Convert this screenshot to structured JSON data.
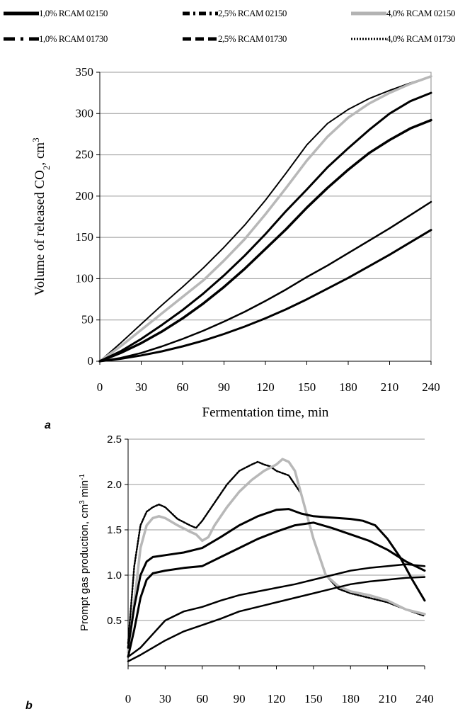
{
  "legend": [
    {
      "label": "1,0% RCAM 02150",
      "color": "#000000",
      "dash": "solid",
      "width": 5
    },
    {
      "label": "2,5% RCAM 02150",
      "color": "#000000",
      "dash": "dashdot",
      "width": 5
    },
    {
      "label": "4,0% RCAM 02150",
      "color": "#b3b3b3",
      "dash": "solid",
      "width": 5
    },
    {
      "label": "1,0% RCAM 01730",
      "color": "#000000",
      "dash": "longdash",
      "width": 5
    },
    {
      "label": "2,5% RCAM 01730",
      "color": "#000000",
      "dash": "dash",
      "width": 5
    },
    {
      "label": "4,0% RCAM 01730",
      "color": "#000000",
      "dash": "dot",
      "width": 3
    }
  ],
  "panels": {
    "a": "a",
    "b": "b"
  },
  "chart_data": [
    {
      "type": "line",
      "panel": "a",
      "xlabel": "Fermentation time, min",
      "ylabel": "Volume of released CO",
      "ylabel_sub": "2",
      "ylabel_suffix": ", cm",
      "ylabel_sup": "3",
      "xlim": [
        0,
        240
      ],
      "ylim": [
        0,
        350
      ],
      "xticks": [
        0,
        30,
        60,
        90,
        120,
        150,
        180,
        210,
        240
      ],
      "yticks": [
        0,
        50,
        100,
        150,
        200,
        250,
        300,
        350
      ],
      "grid": "horizontal",
      "x": [
        0,
        15,
        30,
        45,
        60,
        75,
        90,
        105,
        120,
        135,
        150,
        165,
        180,
        195,
        210,
        225,
        240
      ],
      "series": [
        {
          "name": "4,0% RCAM 01730",
          "color": "#000000",
          "width": 2,
          "dash": "2,1",
          "values": [
            0,
            22,
            45,
            68,
            90,
            113,
            138,
            165,
            195,
            228,
            262,
            288,
            305,
            318,
            328,
            337,
            345
          ]
        },
        {
          "name": "4,0% RCAM 02150",
          "color": "#b8b8b8",
          "width": 3.5,
          "dash": "",
          "values": [
            0,
            18,
            38,
            58,
            78,
            98,
            122,
            148,
            178,
            210,
            243,
            272,
            295,
            312,
            325,
            336,
            345
          ]
        },
        {
          "name": "2,5% RCAM 01730",
          "color": "#000000",
          "width": 3,
          "dash": "",
          "values": [
            0,
            12,
            27,
            44,
            62,
            82,
            104,
            128,
            154,
            182,
            208,
            235,
            258,
            280,
            300,
            315,
            325
          ]
        },
        {
          "name": "2,5% RCAM 02150",
          "color": "#000000",
          "width": 3.5,
          "dash": "",
          "values": [
            0,
            10,
            22,
            36,
            52,
            70,
            90,
            112,
            136,
            160,
            186,
            210,
            232,
            252,
            268,
            282,
            292
          ]
        },
        {
          "name": "1,0% RCAM 01730",
          "color": "#000000",
          "width": 2.5,
          "dash": "",
          "values": [
            0,
            4,
            10,
            18,
            27,
            37,
            48,
            60,
            73,
            87,
            102,
            116,
            131,
            146,
            161,
            177,
            193
          ]
        },
        {
          "name": "1,0% RCAM 02150",
          "color": "#000000",
          "width": 3,
          "dash": "",
          "values": [
            0,
            3,
            7,
            12,
            18,
            25,
            33,
            42,
            52,
            63,
            75,
            88,
            101,
            115,
            129,
            144,
            159
          ]
        }
      ]
    },
    {
      "type": "line",
      "panel": "b",
      "xlabel": "Fermentation time, min",
      "ylabel": "Prompt gas production, cm",
      "ylabel_sup": "3",
      "ylabel_suffix": " min",
      "ylabel_sup2": "-1",
      "xlim": [
        0,
        240
      ],
      "ylim": [
        0,
        2.5
      ],
      "xticks": [
        0,
        30,
        60,
        90,
        120,
        150,
        180,
        210,
        240
      ],
      "xtick_labels": [
        "0",
        "30",
        "60",
        "90",
        "120",
        "150",
        "180",
        "210",
        "240"
      ],
      "yticks": [
        0.5,
        1.0,
        1.5,
        2.0,
        2.5
      ],
      "ytick_labels": [
        "0.5",
        "1.0",
        "1.5",
        "2.0",
        "2.5"
      ],
      "grid": "horizontal",
      "series": [
        {
          "name": "4,0% RCAM 01730",
          "color": "#000000",
          "width": 2.5,
          "dash": "2,2",
          "x": [
            0,
            5,
            10,
            15,
            20,
            25,
            30,
            40,
            50,
            55,
            60,
            70,
            80,
            90,
            100,
            105,
            110,
            115,
            120,
            130,
            140,
            150,
            160,
            170,
            180,
            195,
            210,
            225,
            240
          ],
          "values": [
            0.25,
            1.1,
            1.55,
            1.7,
            1.75,
            1.78,
            1.75,
            1.62,
            1.55,
            1.52,
            1.6,
            1.8,
            2.0,
            2.15,
            2.22,
            2.25,
            2.22,
            2.2,
            2.15,
            2.1,
            1.9,
            1.4,
            1.0,
            0.85,
            0.8,
            0.75,
            0.7,
            0.62,
            0.55
          ]
        },
        {
          "name": "4,0% RCAM 02150",
          "color": "#b8b8b8",
          "width": 3.5,
          "dash": "",
          "x": [
            0,
            5,
            10,
            15,
            20,
            25,
            30,
            40,
            50,
            55,
            60,
            65,
            70,
            80,
            90,
            100,
            110,
            120,
            125,
            130,
            135,
            140,
            150,
            160,
            170,
            180,
            195,
            210,
            225,
            240
          ],
          "values": [
            0.15,
            0.7,
            1.3,
            1.55,
            1.63,
            1.65,
            1.63,
            1.55,
            1.48,
            1.45,
            1.38,
            1.42,
            1.55,
            1.75,
            1.92,
            2.05,
            2.15,
            2.22,
            2.28,
            2.25,
            2.15,
            1.9,
            1.4,
            1.0,
            0.88,
            0.82,
            0.78,
            0.72,
            0.62,
            0.57
          ]
        },
        {
          "name": "2,5% RCAM 01730",
          "color": "#000000",
          "width": 3,
          "dash": "",
          "x": [
            0,
            5,
            10,
            15,
            20,
            30,
            45,
            60,
            75,
            90,
            105,
            120,
            130,
            140,
            150,
            160,
            170,
            180,
            190,
            200,
            210,
            220,
            230,
            240
          ],
          "values": [
            0.2,
            0.65,
            1.0,
            1.15,
            1.2,
            1.22,
            1.25,
            1.3,
            1.42,
            1.55,
            1.65,
            1.72,
            1.73,
            1.68,
            1.65,
            1.64,
            1.63,
            1.62,
            1.6,
            1.55,
            1.4,
            1.2,
            0.95,
            0.72
          ]
        },
        {
          "name": "2,5% RCAM 02150",
          "color": "#000000",
          "width": 3,
          "dash": "",
          "x": [
            0,
            5,
            10,
            15,
            20,
            30,
            45,
            60,
            75,
            90,
            105,
            120,
            135,
            150,
            165,
            180,
            195,
            210,
            225,
            240
          ],
          "values": [
            0.1,
            0.4,
            0.75,
            0.95,
            1.02,
            1.05,
            1.08,
            1.1,
            1.2,
            1.3,
            1.4,
            1.48,
            1.55,
            1.58,
            1.52,
            1.45,
            1.38,
            1.28,
            1.15,
            1.05
          ]
        },
        {
          "name": "1,0% RCAM 01730",
          "color": "#000000",
          "width": 2.5,
          "dash": "",
          "x": [
            0,
            10,
            20,
            30,
            45,
            60,
            75,
            90,
            105,
            120,
            135,
            150,
            165,
            180,
            195,
            210,
            225,
            240
          ],
          "values": [
            0.1,
            0.2,
            0.35,
            0.5,
            0.6,
            0.65,
            0.72,
            0.78,
            0.82,
            0.86,
            0.9,
            0.95,
            1.0,
            1.05,
            1.08,
            1.1,
            1.12,
            1.1
          ]
        },
        {
          "name": "1,0% RCAM 02150",
          "color": "#000000",
          "width": 2.5,
          "dash": "",
          "x": [
            0,
            10,
            20,
            30,
            45,
            60,
            75,
            90,
            105,
            120,
            135,
            150,
            165,
            180,
            195,
            210,
            225,
            240
          ],
          "values": [
            0.05,
            0.12,
            0.2,
            0.28,
            0.38,
            0.45,
            0.52,
            0.6,
            0.65,
            0.7,
            0.75,
            0.8,
            0.85,
            0.9,
            0.93,
            0.95,
            0.97,
            0.98
          ]
        }
      ]
    }
  ]
}
